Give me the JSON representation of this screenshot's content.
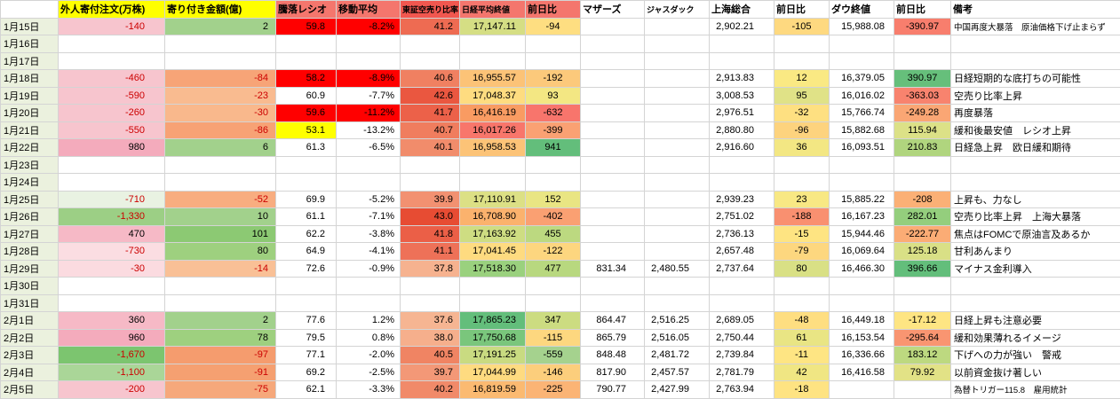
{
  "table": {
    "headers": [
      {
        "label": "",
        "bg": "#ffffff"
      },
      {
        "label": "外人寄付注文(万株)",
        "bg": "#ffff00"
      },
      {
        "label": "寄り付き金額(億)",
        "bg": "#ffff00"
      },
      {
        "label": "騰落レシオ",
        "bg": "#f4766d"
      },
      {
        "label": "移動平均",
        "bg": "#f4766d"
      },
      {
        "label": "東証空売り比率",
        "bg": "#f1574f",
        "small": true
      },
      {
        "label": "日経平均終値",
        "bg": "#f4766d",
        "small": true
      },
      {
        "label": "前日比",
        "bg": "#f4766d"
      },
      {
        "label": "マザーズ",
        "bg": "#ffffff"
      },
      {
        "label": "ジャスダック",
        "bg": "#ffffff",
        "small": true
      },
      {
        "label": "上海総合",
        "bg": "#ffffff"
      },
      {
        "label": "前日比",
        "bg": "#ffffff"
      },
      {
        "label": "ダウ終値",
        "bg": "#ffffff"
      },
      {
        "label": "前日比",
        "bg": "#ffffff"
      },
      {
        "label": "備考",
        "bg": "#ffffff"
      }
    ],
    "rows": [
      {
        "date": "1月15日",
        "cells": [
          [
            "-140",
            "#f7c5ce",
            "#cc0000"
          ],
          [
            "2",
            "#a2d18c",
            null
          ],
          [
            "59.8",
            "#ff0000",
            null
          ],
          [
            "-8.2%",
            "#ff0000",
            null
          ],
          [
            "41.2",
            "#ee6b52",
            null
          ],
          [
            "17,147.11",
            "#d5de84",
            null
          ],
          [
            "-94",
            "#fede81",
            null
          ],
          "",
          "",
          "2,902.21",
          [
            "-105",
            "#fed980",
            null
          ],
          "15,988.08",
          [
            "-390.97",
            "#f87e6d",
            null
          ],
          [
            "中国再度大暴落　原油価格下げ止まらず",
            null,
            null,
            1
          ]
        ]
      },
      {
        "date": "1月16日",
        "cells": []
      },
      {
        "date": "1月17日",
        "cells": []
      },
      {
        "date": "1月18日",
        "cells": [
          [
            "-460",
            "#f7c5ce",
            "#cc0000"
          ],
          [
            "-84",
            "#f7a477",
            "#cc0000"
          ],
          [
            "58.2",
            "#ff0000",
            null
          ],
          [
            "-8.9%",
            "#ff0000",
            null
          ],
          [
            "40.6",
            "#f08061",
            null
          ],
          [
            "16,955.57",
            "#fcc377",
            null
          ],
          [
            "-192",
            "#fcc97b",
            null
          ],
          "",
          "",
          "2,913.83",
          [
            "12",
            "#fae983",
            null
          ],
          "16,379.05",
          [
            "390.97",
            "#66bf7b",
            null
          ],
          [
            "日経短期的な底打ちの可能性"
          ]
        ]
      },
      {
        "date": "1月19日",
        "cells": [
          [
            "-590",
            "#f7c5ce",
            "#cc0000"
          ],
          [
            "-23",
            "#f9bb90",
            "#cc0000"
          ],
          [
            "60.9",
            null,
            null
          ],
          [
            "-7.7%",
            null,
            null
          ],
          [
            "42.6",
            "#ea5740",
            null
          ],
          [
            "17,048.37",
            "#fedc80",
            null
          ],
          [
            "93",
            "#f3e783",
            null
          ],
          "",
          "",
          "3,008.53",
          [
            "95",
            "#e0e287",
            null
          ],
          "16,016.02",
          [
            "-363.03",
            "#f8836e",
            null
          ],
          [
            "空売り比率上昇"
          ]
        ]
      },
      {
        "date": "1月20日",
        "cells": [
          [
            "-260",
            "#f7c5ce",
            "#cc0000"
          ],
          [
            "-30",
            "#f9b88c",
            "#cc0000"
          ],
          [
            "59.6",
            "#ff0000",
            null
          ],
          [
            "-11.2%",
            "#ff0000",
            null
          ],
          [
            "41.7",
            "#ec6149",
            null
          ],
          [
            "16,416.19",
            "#f99b62",
            null
          ],
          [
            "-632",
            "#f8756c",
            null
          ],
          "",
          "",
          "2,976.51",
          [
            "-32",
            "#fee081",
            null
          ],
          "15,766.74",
          [
            "-249.28",
            "#faa674",
            null
          ],
          [
            "再度暴落"
          ]
        ]
      },
      {
        "date": "1月21日",
        "cells": [
          [
            "-550",
            "#f7c5ce",
            "#cc0000"
          ],
          [
            "-86",
            "#f7a275",
            "#cc0000"
          ],
          [
            "53.1",
            "#ffff00",
            null
          ],
          [
            "-13.2%",
            null,
            null
          ],
          [
            "40.7",
            "#f07d5e",
            null
          ],
          [
            "16,017.26",
            "#f8766b",
            null
          ],
          [
            "-399",
            "#faa173",
            null
          ],
          "",
          "",
          "2,880.80",
          [
            "-96",
            "#fdd37e",
            null
          ],
          "15,882.68",
          [
            "115.94",
            "#dce187",
            null
          ],
          [
            "緩和後最安値　レシオ上昇"
          ]
        ]
      },
      {
        "date": "1月22日",
        "cells": [
          [
            "980",
            "#f4abbc",
            null
          ],
          [
            "6",
            "#a2d18c",
            null
          ],
          [
            "61.3",
            null,
            null
          ],
          [
            "-6.5%",
            null,
            null
          ],
          [
            "40.1",
            "#f18c6b",
            null
          ],
          [
            "16,958.53",
            "#fcc377",
            null
          ],
          [
            "941",
            "#63be7b",
            null
          ],
          "",
          "",
          "2,916.60",
          [
            "36",
            "#f3e783",
            null
          ],
          "16,093.51",
          [
            "210.83",
            "#b0d57e",
            null
          ],
          [
            "日経急上昇　欧日緩和期待"
          ]
        ]
      },
      {
        "date": "1月23日",
        "cells": []
      },
      {
        "date": "1月24日",
        "cells": []
      },
      {
        "date": "1月25日",
        "cells": [
          [
            "-710",
            "#e9f2e2",
            "#cc0000"
          ],
          [
            "-52",
            "#f8ad80",
            "#cc0000"
          ],
          [
            "69.9",
            null,
            null
          ],
          [
            "-5.2%",
            null,
            null
          ],
          [
            "39.9",
            "#f29171",
            null
          ],
          [
            "17,110.91",
            "#dce085",
            null
          ],
          [
            "152",
            "#e9e583",
            null
          ],
          "",
          "",
          "2,939.23",
          [
            "23",
            "#f8e884",
            null
          ],
          "15,885.22",
          [
            "-208",
            "#fbb076",
            null
          ],
          [
            "上昇も、力なし"
          ]
        ]
      },
      {
        "date": "1月26日",
        "cells": [
          [
            "-1,330",
            "#9ccf85",
            "#cc0000"
          ],
          [
            "10",
            "#a2d18c",
            null
          ],
          [
            "61.1",
            null,
            null
          ],
          [
            "-7.1%",
            null,
            null
          ],
          [
            "43.0",
            "#e74c33",
            null
          ],
          [
            "16,708.90",
            "#fbb26d",
            null
          ],
          [
            "-402",
            "#faa072",
            null
          ],
          "",
          "",
          "2,751.02",
          [
            "-188",
            "#f99070",
            null
          ],
          "16,167.23",
          [
            "282.01",
            "#94ce7d",
            null
          ],
          [
            "空売り比率上昇　上海大暴落"
          ]
        ]
      },
      {
        "date": "1月27日",
        "cells": [
          [
            "470",
            "#f6b9c6",
            null
          ],
          [
            "101",
            "#8cc973",
            null
          ],
          [
            "62.2",
            null,
            null
          ],
          [
            "-3.8%",
            null,
            null
          ],
          [
            "41.8",
            "#eb5f47",
            null
          ],
          [
            "17,163.92",
            "#cedd82",
            null
          ],
          [
            "455",
            "#bcd980",
            null
          ],
          "",
          "",
          "2,736.13",
          [
            "-15",
            "#fee482",
            null
          ],
          "15,944.46",
          [
            "-222.77",
            "#fbac75",
            null
          ],
          [
            "焦点はFOMCで原油言及あるか"
          ]
        ]
      },
      {
        "date": "1月28日",
        "cells": [
          [
            "-730",
            "#fbdde2",
            "#cc0000"
          ],
          [
            "80",
            "#9ed07f",
            null
          ],
          [
            "64.9",
            null,
            null
          ],
          [
            "-4.1%",
            null,
            null
          ],
          [
            "41.1",
            "#ee7158",
            null
          ],
          [
            "17,041.45",
            "#fedb80",
            null
          ],
          [
            "-122",
            "#fdd67f",
            null
          ],
          "",
          "",
          "2,657.48",
          [
            "-79",
            "#fdd77f",
            null
          ],
          "16,069.64",
          [
            "125.18",
            "#d9e086",
            null
          ],
          [
            "甘利あんまり"
          ]
        ]
      },
      {
        "date": "1月29日",
        "cells": [
          [
            "-30",
            "#fbdbe0",
            "#cc0000"
          ],
          [
            "-14",
            "#f9c096",
            "#cc0000"
          ],
          [
            "72.6",
            null,
            null
          ],
          [
            "-0.9%",
            null,
            null
          ],
          [
            "37.8",
            "#f6b28f",
            null
          ],
          [
            "17,518.30",
            "#9ad17e",
            null
          ],
          [
            "477",
            "#b8d87f",
            null
          ],
          "831.34",
          "2,480.55",
          "2,737.64",
          [
            "80",
            "#d9e085",
            null
          ],
          "16,466.30",
          [
            "396.66",
            "#63be7b",
            null
          ],
          [
            "マイナス金利導入"
          ]
        ]
      },
      {
        "date": "1月30日",
        "cells": []
      },
      {
        "date": "1月31日",
        "cells": []
      },
      {
        "date": "2月1日",
        "cells": [
          [
            "360",
            "#f6b9c6",
            null
          ],
          [
            "2",
            "#a2d18c",
            null
          ],
          [
            "77.6",
            null,
            null
          ],
          [
            "1.2%",
            null,
            null
          ],
          [
            "37.6",
            "#f6b592",
            null
          ],
          [
            "17,865.23",
            "#63be7b",
            null
          ],
          [
            "347",
            "#ccdc81",
            null
          ],
          "864.47",
          "2,516.25",
          "2,689.05",
          [
            "-48",
            "#fede81",
            null
          ],
          "16,449.18",
          [
            "-17.12",
            "#fee583",
            null
          ],
          [
            "日経上昇も注意必要"
          ]
        ]
      },
      {
        "date": "2月2日",
        "cells": [
          [
            "960",
            "#f4abbc",
            null
          ],
          [
            "78",
            "#9ed07f",
            null
          ],
          [
            "79.5",
            null,
            null
          ],
          [
            "0.8%",
            null,
            null
          ],
          [
            "38.0",
            "#f6af8c",
            null
          ],
          [
            "17,750.68",
            "#7ac67c",
            null
          ],
          [
            "-115",
            "#fdd77f",
            null
          ],
          "865.79",
          "2,516.05",
          "2,750.44",
          [
            "61",
            "#e9e584",
            null
          ],
          "16,153.54",
          [
            "-295.64",
            "#f99571",
            null
          ],
          [
            "緩和効果薄れるイメージ"
          ]
        ]
      },
      {
        "date": "2月3日",
        "cells": [
          [
            "-1,670",
            "#7cc56f",
            "#cc0000"
          ],
          [
            "-97",
            "#f59c6e",
            "#cc0000"
          ],
          [
            "77.1",
            null,
            null
          ],
          [
            "-2.0%",
            null,
            null
          ],
          [
            "40.5",
            "#f08463",
            null
          ],
          [
            "17,191.25",
            "#c9db81",
            null
          ],
          [
            "-559",
            "#a5d28e",
            null
          ],
          "848.48",
          "2,481.72",
          "2,739.84",
          [
            "-11",
            "#fee583",
            null
          ],
          "16,336.66",
          [
            "183.12",
            "#bdd980",
            null
          ],
          [
            "下げへの力が強い　警戒"
          ]
        ]
      },
      {
        "date": "2月4日",
        "cells": [
          [
            "-1,100",
            "#aad698",
            "#cc0000"
          ],
          [
            "-91",
            "#f5a071",
            "#cc0000"
          ],
          [
            "69.2",
            null,
            null
          ],
          [
            "-2.5%",
            null,
            null
          ],
          [
            "39.7",
            "#f39877",
            null
          ],
          [
            "17,044.99",
            "#fedb80",
            null
          ],
          [
            "-146",
            "#fcce7c",
            null
          ],
          "817.90",
          "2,457.57",
          "2,781.79",
          [
            "42",
            "#f0e683",
            null
          ],
          "16,416.58",
          [
            "79.92",
            "#e2e286",
            null
          ],
          [
            "以前資金抜け著しい"
          ]
        ]
      },
      {
        "date": "2月5日",
        "cells": [
          [
            "-200",
            "#f7c5ce",
            "#cc0000"
          ],
          [
            "-75",
            "#f6a87b",
            "#cc0000"
          ],
          [
            "62.1",
            null,
            null
          ],
          [
            "-3.3%",
            null,
            null
          ],
          [
            "40.2",
            "#f18a69",
            null
          ],
          [
            "16,819.59",
            "#fbba71",
            null
          ],
          [
            "-225",
            "#fbb475",
            null
          ],
          "790.77",
          "2,427.99",
          "2,763.94",
          [
            "-18",
            "#fee382",
            null
          ],
          "",
          "",
          [
            "為替トリガー115.8　雇用統計",
            null,
            null,
            1
          ]
        ]
      }
    ]
  },
  "colors": {
    "grid_line": "#d4d4d4",
    "date_column_bg": "#ebf1de",
    "header_yellow": "#ffff00",
    "header_salmon": "#f4766d",
    "alert_red": "#ff0000",
    "alert_yellow": "#ffff00",
    "negative_text": "#cc0000",
    "scale_green": "#63be7b",
    "scale_mid_yellow": "#ffeb84",
    "scale_red": "#f8696b"
  }
}
